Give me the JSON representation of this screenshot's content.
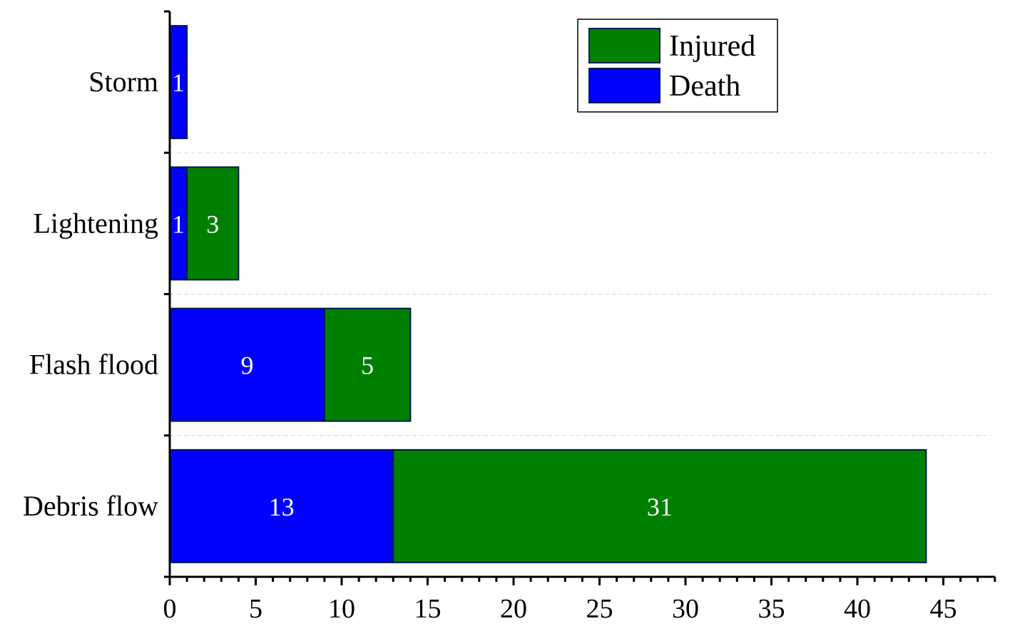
{
  "chart_data": {
    "type": "bar",
    "orientation": "horizontal",
    "stacked": true,
    "categories": [
      "Storm",
      "Lightening",
      "Flash flood",
      "Debris flow"
    ],
    "series": [
      {
        "name": "Death",
        "values": [
          1,
          1,
          9,
          13
        ],
        "color": "#0000ff"
      },
      {
        "name": "Injured",
        "values": [
          0,
          3,
          5,
          31
        ],
        "color": "#008000"
      }
    ],
    "data_labels": [
      [
        "1",
        "1",
        "9",
        "13"
      ],
      [
        "",
        "3",
        "5",
        "31"
      ]
    ],
    "legend": {
      "placement": "top-right",
      "entries": [
        {
          "series": "Injured",
          "color": "#008000"
        },
        {
          "series": "Death",
          "color": "#0000ff"
        }
      ]
    },
    "x_ticks": [
      0,
      5,
      10,
      15,
      20,
      25,
      30,
      35,
      40,
      45
    ],
    "xlim": [
      0,
      48
    ],
    "title": "",
    "xlabel": "",
    "ylabel": "",
    "grid": "horizontal dashed separators between categories",
    "colors": {
      "death": "#0000ff",
      "injured": "#008000",
      "bar_outline": "#001a4d"
    }
  }
}
